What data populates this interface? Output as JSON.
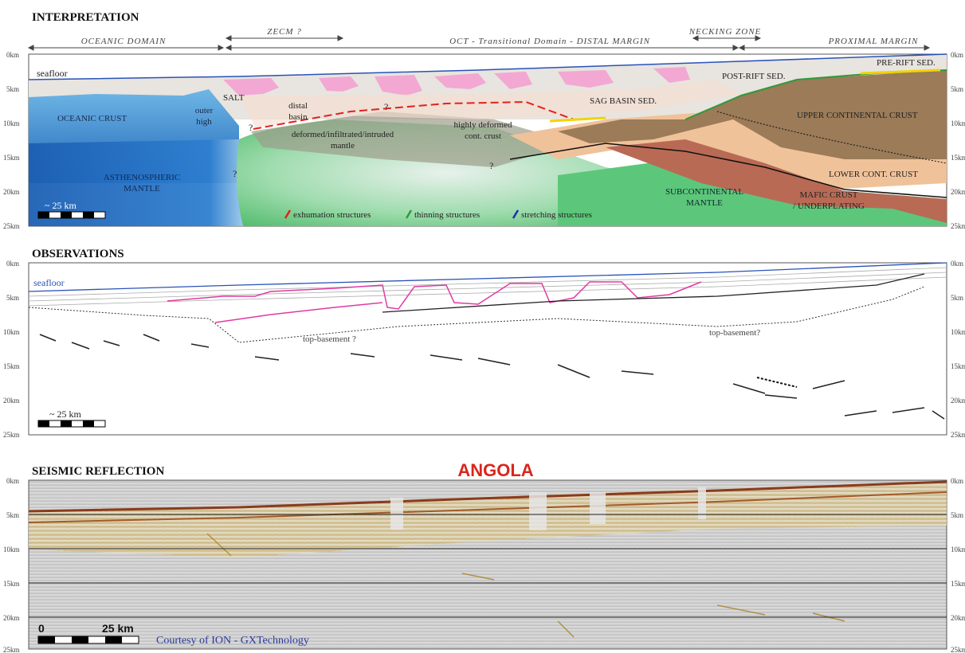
{
  "interpretation": {
    "heading": "INTERPRETATION",
    "domains": [
      {
        "label": "OCEANIC DOMAIN"
      },
      {
        "label": "ZECM ?"
      },
      {
        "label": "OCT  - Transitional Domain - DISTAL MARGIN"
      },
      {
        "label": "NECKING ZONE"
      },
      {
        "label": "PROXIMAL MARGIN"
      }
    ],
    "depth_ticks_left": [
      "0km",
      "5km",
      "10km",
      "15km",
      "20km",
      "25km"
    ],
    "depth_ticks_right": [
      "0km",
      "5km",
      "10km",
      "15km",
      "20km",
      "25km"
    ],
    "labels": {
      "seafloor": "seafloor",
      "oceanic_crust": "OCEANIC CRUST",
      "outer_high_1": "outer",
      "outer_high_2": "high",
      "salt": "SALT",
      "distal_basin_1": "distal",
      "distal_basin_2": "basin",
      "deformed_mantle_1": "deformed/infiltrated/intruded",
      "deformed_mantle_2": "mantle",
      "highly_deformed_1": "highly deformed",
      "highly_deformed_2": "cont. crust",
      "sag_basin": "SAG BASIN SED.",
      "post_rift": "POST-RIFT SED.",
      "pre_rift": "PRE-RIFT SED.",
      "upper_crust": "UPPER CONTINENTAL CRUST",
      "lower_crust": "LOWER CONT. CRUST",
      "astheno_1": "ASTHENOSPHERIC",
      "astheno_2": "MANTLE",
      "subcont_1": "SUBCONTINENTAL",
      "subcont_2": "MANTLE",
      "mafic_1": "MAFIC CRUST",
      "mafic_2": "/ UNDERPLATING",
      "q1": "?",
      "q2": "?",
      "q3": "?",
      "q4": "?"
    },
    "legend": [
      {
        "label": "exhumation structures",
        "color": "#e0231c"
      },
      {
        "label": "thinning structures",
        "color": "#2e9a3a"
      },
      {
        "label": "stretching structures",
        "color": "#1b2fa8"
      }
    ],
    "scale": "~ 25 km"
  },
  "observations": {
    "heading": "OBSERVATIONS",
    "depth_ticks_left": [
      "0km",
      "5km",
      "10km",
      "15km",
      "20km",
      "25km"
    ],
    "depth_ticks_right": [
      "0km",
      "5km",
      "10km",
      "15km",
      "20km",
      "25km"
    ],
    "labels": {
      "seafloor": "seafloor",
      "top_basement_1": "top-basement ?",
      "top_basement_2": "top-basement?"
    },
    "scale": "~ 25 km"
  },
  "seismic": {
    "heading": "SEISMIC REFLECTION",
    "title": "ANGOLA",
    "depth_ticks_left": [
      "0km",
      "5km",
      "10km",
      "15km",
      "20km",
      "25km"
    ],
    "depth_ticks_right": [
      "0km",
      "5km",
      "10km",
      "15km",
      "20km",
      "25km"
    ],
    "scale_zero": "0",
    "scale_label": "25 km",
    "credit": "Courtesy of ION - GXTechnology"
  },
  "colors": {
    "oceanic": "#3b8fd4",
    "salt": "#f2a8d2",
    "sediment": "#e6e2dc",
    "upper_crust": "#9b7b58",
    "lower_crust": "#f0c29a",
    "mantle": "#5cc77a",
    "mafic": "#b86a55",
    "title_red": "#d9261c",
    "credit_blue": "#2a3a9c"
  }
}
